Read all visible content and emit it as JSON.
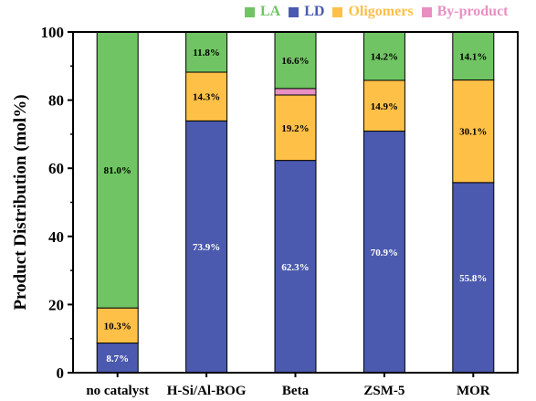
{
  "chart_data": {
    "type": "bar",
    "stacked": true,
    "title": "",
    "xlabel": "",
    "ylabel": "Product Distribution (mol%)",
    "ylim": [
      0,
      100
    ],
    "yticks": [
      0,
      20,
      40,
      60,
      80,
      100
    ],
    "grid": false,
    "legend_position": "top",
    "categories": [
      "no catalyst",
      "H-Si/Al-BOG",
      "Beta",
      "ZSM-5",
      "MOR"
    ],
    "series": [
      {
        "name": "LD",
        "color": "#4B5AAE",
        "label_color": "#ffffff",
        "values": [
          8.7,
          73.9,
          62.3,
          70.9,
          55.8
        ],
        "labels": [
          "8.7%",
          "73.9%",
          "62.3%",
          "70.9%",
          "55.8%"
        ]
      },
      {
        "name": "Oligomers",
        "color": "#FEC047",
        "label_color": "#000000",
        "values": [
          10.3,
          14.3,
          19.2,
          14.9,
          30.1
        ],
        "labels": [
          "10.3%",
          "14.3%",
          "19.2%",
          "14.9%",
          "30.1%"
        ]
      },
      {
        "name": "By-product",
        "color": "#E98FC3",
        "label_color": "#000000",
        "values": [
          0,
          0,
          1.9,
          0,
          0
        ],
        "labels": [
          "",
          "",
          "",
          "",
          ""
        ]
      },
      {
        "name": "LA",
        "color": "#70C463",
        "label_color": "#000000",
        "values": [
          81.0,
          11.8,
          16.6,
          14.2,
          14.1
        ],
        "labels": [
          "81.0%",
          "11.8%",
          "16.6%",
          "14.2%",
          "14.1%"
        ]
      }
    ],
    "legend": [
      {
        "name": "LA",
        "color": "#70C463"
      },
      {
        "name": "LD",
        "color": "#4B5AAE"
      },
      {
        "name": "Oligomers",
        "color": "#FEC047"
      },
      {
        "name": "By-product",
        "color": "#E98FC3"
      }
    ]
  }
}
